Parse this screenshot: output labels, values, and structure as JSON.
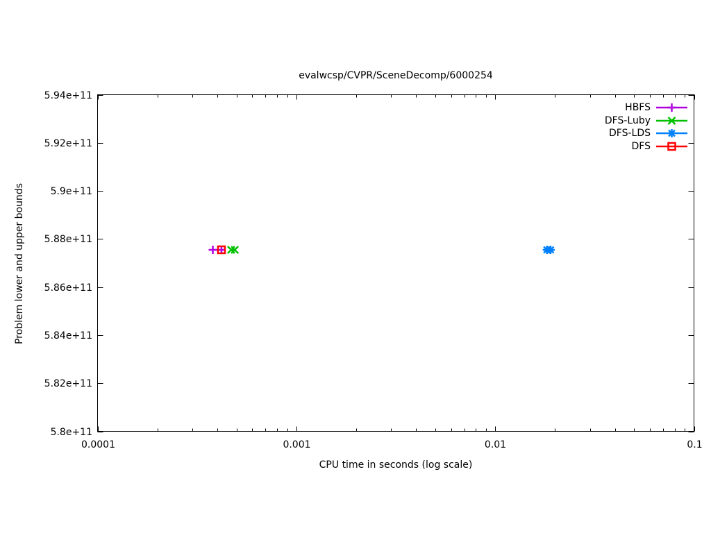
{
  "chart_data": {
    "type": "scatter",
    "title": "evalwcsp/CVPR/SceneDecomp/6000254",
    "xlabel": "CPU time in seconds (log scale)",
    "ylabel": "Problem lower and upper bounds",
    "xscale": "log",
    "yscale": "linear",
    "xlim": [
      0.0001,
      0.1
    ],
    "ylim": [
      580000000000.0,
      594000000000.0
    ],
    "grid": false,
    "legend_position": "top-right-inside",
    "axis_color": "#000000",
    "xticks": [
      {
        "v": 0.0001,
        "label": "0.0001"
      },
      {
        "v": 0.001,
        "label": "0.001"
      },
      {
        "v": 0.01,
        "label": "0.01"
      },
      {
        "v": 0.1,
        "label": "0.1"
      }
    ],
    "x_minor_multiples": [
      2,
      3,
      4,
      5,
      6,
      7,
      8,
      9
    ],
    "yticks": [
      {
        "v": 580000000000.0,
        "label": "5.8e+11"
      },
      {
        "v": 582000000000.0,
        "label": "5.82e+11"
      },
      {
        "v": 584000000000.0,
        "label": "5.84e+11"
      },
      {
        "v": 586000000000.0,
        "label": "5.86e+11"
      },
      {
        "v": 588000000000.0,
        "label": "5.88e+11"
      },
      {
        "v": 590000000000.0,
        "label": "5.9e+11"
      },
      {
        "v": 592000000000.0,
        "label": "5.92e+11"
      },
      {
        "v": 594000000000.0,
        "label": "5.94e+11"
      }
    ],
    "series": [
      {
        "name": "HBFS",
        "color": "#b000e0",
        "marker": "plus",
        "points": [
          {
            "x": 0.00038,
            "y": 587550000000.0
          },
          {
            "x": 0.00042,
            "y": 587550000000.0
          }
        ]
      },
      {
        "name": "DFS-Luby",
        "color": "#00c000",
        "marker": "x",
        "points": [
          {
            "x": 0.00047,
            "y": 587550000000.0
          },
          {
            "x": 0.00049,
            "y": 587550000000.0
          }
        ]
      },
      {
        "name": "DFS-LDS",
        "color": "#0080ff",
        "marker": "star",
        "points": [
          {
            "x": 0.0182,
            "y": 587550000000.0
          },
          {
            "x": 0.019,
            "y": 587550000000.0
          }
        ]
      },
      {
        "name": "DFS",
        "color": "#ff0000",
        "marker": "square-open",
        "points": [
          {
            "x": 0.00042,
            "y": 587550000000.0
          }
        ]
      }
    ],
    "legend_order": [
      "HBFS",
      "DFS-Luby",
      "DFS-LDS",
      "DFS"
    ]
  }
}
